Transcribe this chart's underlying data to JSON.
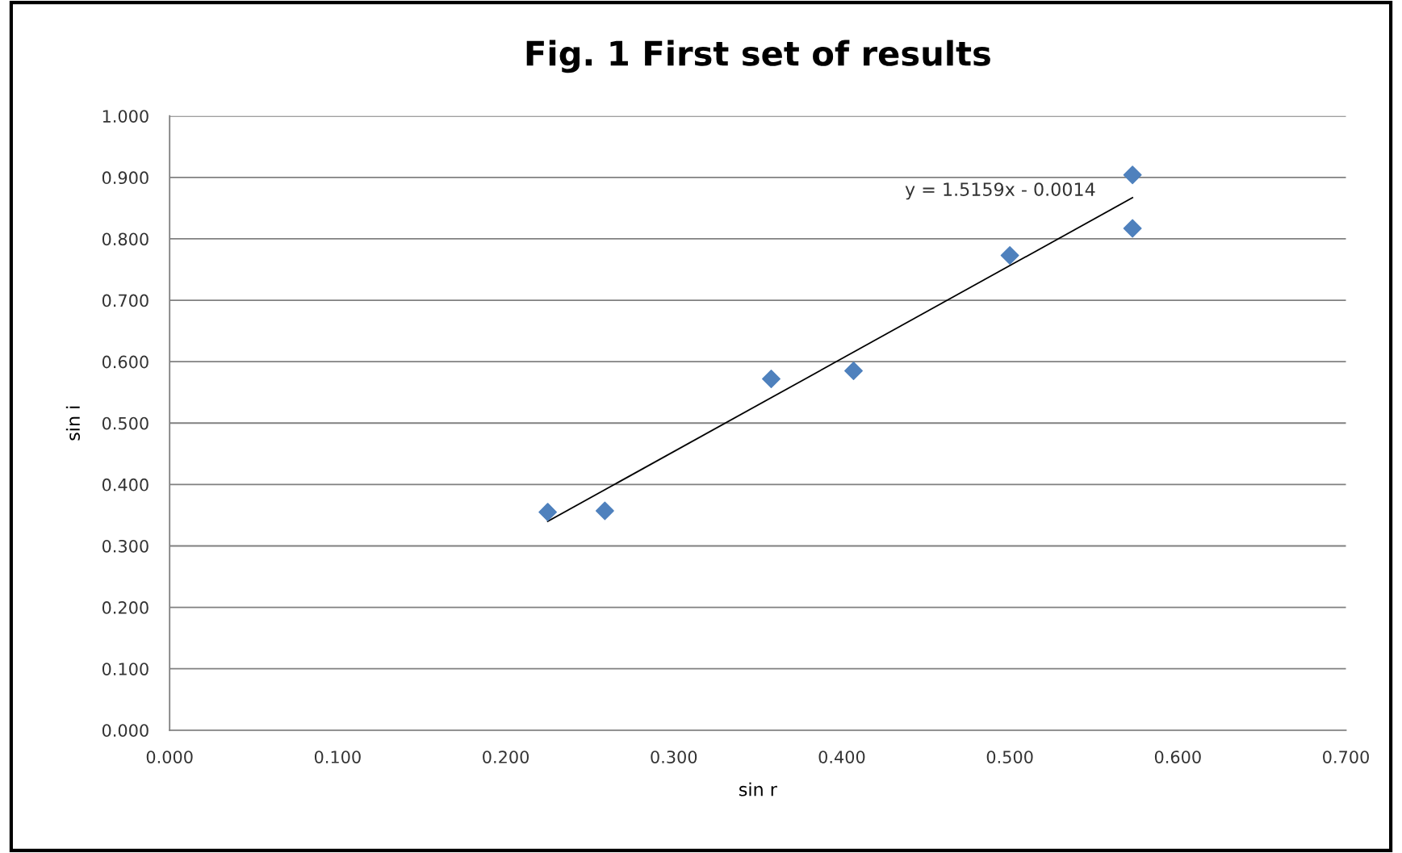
{
  "chart_data": {
    "type": "scatter",
    "title": "Fig. 1 First set of results",
    "xlabel": "sin r",
    "ylabel": "sin i",
    "x": [
      0.225,
      0.259,
      0.358,
      0.407,
      0.5,
      0.573,
      0.573
    ],
    "series": [
      {
        "color": "#4f81bd",
        "marker": "diamond",
        "values": [
          0.355,
          0.357,
          0.572,
          0.585,
          0.773,
          0.904,
          0.817
        ]
      },
      {
        "type": "line",
        "color": "#000000",
        "marker": "none",
        "line_style": "solid",
        "x": [
          0.225,
          0.573
        ],
        "values": [
          0.34,
          0.867
        ]
      }
    ],
    "annotations": [
      "y = 1.5159x - 0.0014"
    ],
    "xlim": [
      0,
      0.7
    ],
    "ylim": [
      0,
      1
    ],
    "xticks": [
      {
        "value": 0,
        "label": "0.000"
      },
      {
        "value": 0.1,
        "label": "0.100"
      },
      {
        "value": 0.2,
        "label": "0.200"
      },
      {
        "value": 0.3,
        "label": "0.300"
      },
      {
        "value": 0.4,
        "label": "0.400"
      },
      {
        "value": 0.5,
        "label": "0.500"
      },
      {
        "value": 0.6,
        "label": "0.600"
      },
      {
        "value": 0.7,
        "label": "0.700"
      }
    ],
    "yticks": [
      {
        "value": 0,
        "label": "0.000"
      },
      {
        "value": 0.1,
        "label": "0.100"
      },
      {
        "value": 0.2,
        "label": "0.200"
      },
      {
        "value": 0.3,
        "label": "0.300"
      },
      {
        "value": 0.4,
        "label": "0.400"
      },
      {
        "value": 0.5,
        "label": "0.500"
      },
      {
        "value": 0.6,
        "label": "0.600"
      },
      {
        "value": 0.7,
        "label": "0.700"
      },
      {
        "value": 0.8,
        "label": "0.800"
      },
      {
        "value": 0.9,
        "label": "0.900"
      },
      {
        "value": 1,
        "label": "1.000"
      }
    ],
    "grid": "y",
    "legend": false
  }
}
